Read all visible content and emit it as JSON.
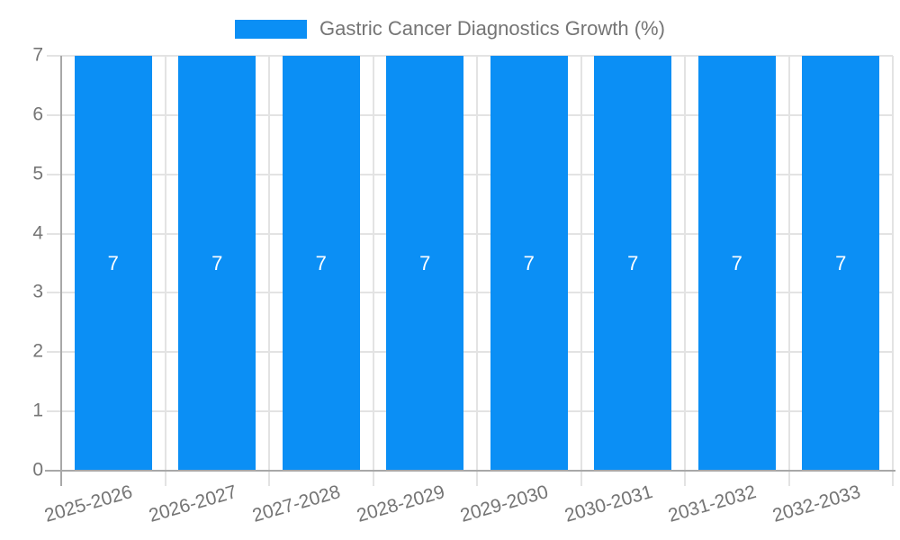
{
  "legend": {
    "series_label": "Gastric Cancer Diagnostics Growth (%)",
    "swatch_color": "#0b8ff5"
  },
  "chart_data": {
    "type": "bar",
    "title": "Gastric Cancer Diagnostics Growth (%)",
    "categories": [
      "2025-2026",
      "2026-2027",
      "2027-2028",
      "2028-2029",
      "2029-2030",
      "2030-2031",
      "2031-2032",
      "2032-2033"
    ],
    "series": [
      {
        "name": "Gastric Cancer Diagnostics Growth (%)",
        "values": [
          7,
          7,
          7,
          7,
          7,
          7,
          7,
          7
        ]
      }
    ],
    "values": [
      7,
      7,
      7,
      7,
      7,
      7,
      7,
      7
    ],
    "bar_labels": [
      "7",
      "7",
      "7",
      "7",
      "7",
      "7",
      "7",
      "7"
    ],
    "xlabel": "",
    "ylabel": "",
    "ylim": [
      0,
      7
    ],
    "yticks": [
      0,
      1,
      2,
      3,
      4,
      5,
      6,
      7
    ],
    "grid": true,
    "legend_position": "top-center",
    "colors": {
      "bar": "#0b8ff5",
      "text": "#757575",
      "grid": "#e3e3e3",
      "axis": "#a8a8a8",
      "bar_label": "#ffffff",
      "background": "#ffffff"
    }
  }
}
